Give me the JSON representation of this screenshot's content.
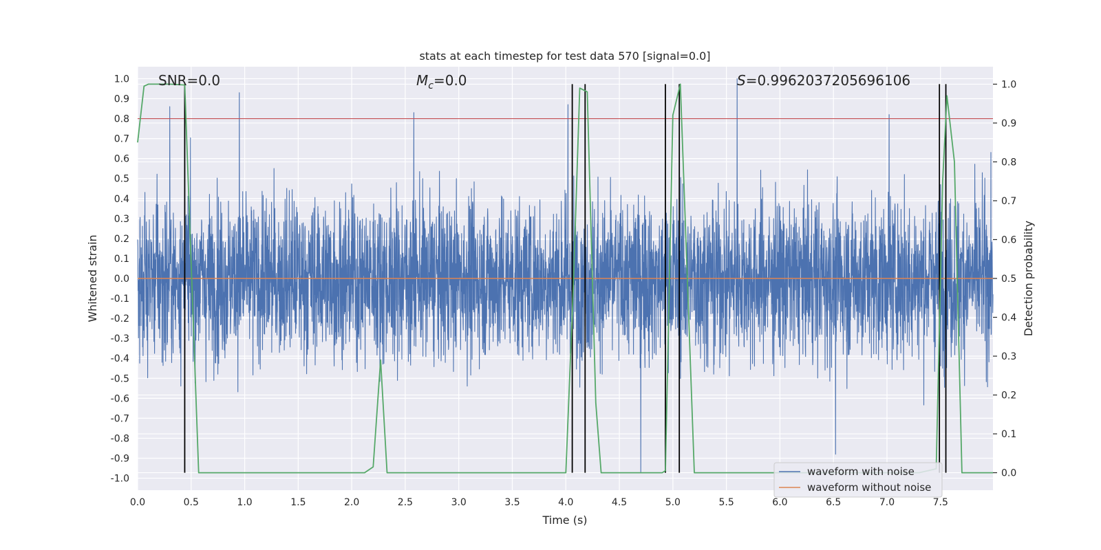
{
  "chart_data": {
    "type": "line",
    "title": "stats at each timestep for test data 570 [signal=0.0]",
    "xlabel": "Time (s)",
    "ylabel": "Whitened strain",
    "y2label": "Detection probability",
    "xlim": [
      0.0,
      7.99
    ],
    "ylim": [
      -1.06,
      1.06
    ],
    "y2lim": [
      -0.045,
      1.045
    ],
    "xticks": [
      "0.0",
      "0.5",
      "1.0",
      "1.5",
      "2.0",
      "2.5",
      "3.0",
      "3.5",
      "4.0",
      "4.5",
      "5.0",
      "5.5",
      "6.0",
      "6.5",
      "7.0",
      "7.5"
    ],
    "xtick_values": [
      0.0,
      0.5,
      1.0,
      1.5,
      2.0,
      2.5,
      3.0,
      3.5,
      4.0,
      4.5,
      5.0,
      5.5,
      6.0,
      6.5,
      7.0,
      7.5
    ],
    "yticks": [
      "1.0",
      "0.9",
      "0.8",
      "0.7",
      "0.6",
      "0.5",
      "0.4",
      "0.3",
      "0.2",
      "0.1",
      "0.0",
      "-0.1",
      "-0.2",
      "-0.3",
      "-0.4",
      "-0.5",
      "-0.6",
      "-0.7",
      "-0.8",
      "-0.9",
      "-1.0"
    ],
    "ytick_values": [
      1.0,
      0.9,
      0.8,
      0.7,
      0.6,
      0.5,
      0.4,
      0.3,
      0.2,
      0.1,
      0.0,
      -0.1,
      -0.2,
      -0.3,
      -0.4,
      -0.5,
      -0.6,
      -0.7,
      -0.8,
      -0.9,
      -1.0
    ],
    "y2ticks": [
      "1.0",
      "0.9",
      "0.8",
      "0.7",
      "0.6",
      "0.5",
      "0.4",
      "0.3",
      "0.2",
      "0.1",
      "0.0"
    ],
    "y2tick_values": [
      1.0,
      0.9,
      0.8,
      0.7,
      0.6,
      0.5,
      0.4,
      0.3,
      0.2,
      0.1,
      0.0
    ],
    "annotations": {
      "snr": "SNR=0.0",
      "mc_symbol": "M",
      "mc_sub": "c",
      "mc_value": "=0.0",
      "s_symbol": "S",
      "s_value": "=0.9962037205696106"
    },
    "threshold": 0.8,
    "series": [
      {
        "name": "waveform with noise",
        "color": "#4c72b0",
        "description": "dense noise, amplitude roughly ±0.4 with spikes to about ±0.95",
        "peaks": [
          [
            0.3,
            0.86
          ],
          [
            0.95,
            0.93
          ],
          [
            2.58,
            0.83
          ],
          [
            4.02,
            0.87
          ],
          [
            4.7,
            -0.97
          ],
          [
            5.6,
            1.0
          ],
          [
            6.52,
            -0.88
          ],
          [
            7.02,
            0.82
          ]
        ]
      },
      {
        "name": "waveform without noise",
        "color": "#dd8452",
        "values_constant": 0.0
      },
      {
        "name": "detection probability",
        "color": "#55a868",
        "axis": "right",
        "x": [
          0.0,
          0.06,
          0.1,
          0.2,
          0.3,
          0.44,
          0.57,
          0.7,
          1.0,
          1.5,
          2.0,
          2.12,
          2.2,
          2.27,
          2.33,
          2.5,
          3.0,
          3.5,
          4.0,
          4.07,
          4.13,
          4.2,
          4.28,
          4.33,
          4.5,
          4.9,
          4.93,
          5.0,
          5.07,
          5.2,
          5.5,
          6.0,
          6.5,
          7.0,
          7.3,
          7.46,
          7.52,
          7.56,
          7.63,
          7.7,
          7.9,
          7.99
        ],
        "y": [
          0.85,
          0.995,
          1.0,
          1.0,
          1.0,
          0.998,
          0.0,
          0.0,
          0.0,
          0.0,
          0.0,
          0.0,
          0.015,
          0.29,
          0.0,
          0.0,
          0.0,
          0.0,
          0.0,
          0.48,
          0.99,
          0.98,
          0.18,
          0.0,
          0.0,
          0.0,
          0.005,
          0.92,
          1.0,
          0.0,
          0.0,
          0.0,
          0.0,
          0.0,
          0.0,
          0.01,
          0.75,
          0.97,
          0.8,
          0.0,
          0.0,
          0.0
        ]
      }
    ],
    "vertical_lines": [
      0.44,
      4.06,
      4.18,
      4.93,
      5.06,
      7.49,
      7.55
    ],
    "legend": {
      "placement": "bottom-right",
      "entries": [
        "waveform with noise",
        "waveform without noise"
      ]
    },
    "colors": {
      "background": "#eaeaf2",
      "grid": "#ffffff",
      "noise": "#4c72b0",
      "clean": "#dd8452",
      "prob": "#55a868",
      "threshold": "#c44e52",
      "vlines": "#000000"
    }
  }
}
